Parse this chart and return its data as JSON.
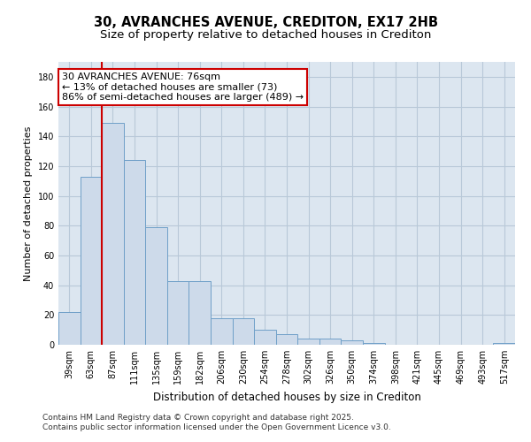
{
  "title_line1": "30, AVRANCHES AVENUE, CREDITON, EX17 2HB",
  "title_line2": "Size of property relative to detached houses in Crediton",
  "xlabel": "Distribution of detached houses by size in Crediton",
  "ylabel": "Number of detached properties",
  "categories": [
    "39sqm",
    "63sqm",
    "87sqm",
    "111sqm",
    "135sqm",
    "159sqm",
    "182sqm",
    "206sqm",
    "230sqm",
    "254sqm",
    "278sqm",
    "302sqm",
    "326sqm",
    "350sqm",
    "374sqm",
    "398sqm",
    "421sqm",
    "445sqm",
    "469sqm",
    "493sqm",
    "517sqm"
  ],
  "values": [
    22,
    113,
    149,
    124,
    79,
    43,
    43,
    18,
    18,
    10,
    7,
    4,
    4,
    3,
    1,
    0,
    0,
    0,
    0,
    0,
    1
  ],
  "bar_color": "#cddaea",
  "bar_edge_color": "#6fa0c8",
  "grid_color": "#b8c8d8",
  "background_color": "#dce6f0",
  "annotation_text_line1": "30 AVRANCHES AVENUE: 76sqm",
  "annotation_text_line2": "← 13% of detached houses are smaller (73)",
  "annotation_text_line3": "86% of semi-detached houses are larger (489) →",
  "annotation_box_facecolor": "#ffffff",
  "annotation_box_edgecolor": "#cc0000",
  "vline_color": "#cc0000",
  "vline_x": 1.5,
  "ylim": [
    0,
    190
  ],
  "yticks": [
    0,
    20,
    40,
    60,
    80,
    100,
    120,
    140,
    160,
    180
  ],
  "footer_line1": "Contains HM Land Registry data © Crown copyright and database right 2025.",
  "footer_line2": "Contains public sector information licensed under the Open Government Licence v3.0.",
  "title_fontsize": 10.5,
  "subtitle_fontsize": 9.5,
  "tick_fontsize": 7,
  "ylabel_fontsize": 8,
  "xlabel_fontsize": 8.5,
  "annotation_fontsize": 8,
  "footer_fontsize": 6.5
}
